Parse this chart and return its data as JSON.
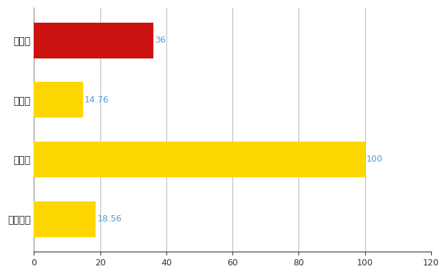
{
  "categories": [
    "大仙市",
    "県平均",
    "県最大",
    "全国平均"
  ],
  "values": [
    36,
    14.76,
    100,
    18.56
  ],
  "bar_colors": [
    "#CC1111",
    "#FFD700",
    "#FFD700",
    "#FFD700"
  ],
  "value_labels": [
    "36",
    "14.76",
    "100",
    "18.56"
  ],
  "label_color": "#5599CC",
  "xlim": [
    0,
    120
  ],
  "xticks": [
    0,
    20,
    40,
    60,
    80,
    100,
    120
  ],
  "grid_color": "#BBBBBB",
  "background_color": "#FFFFFF",
  "bar_height": 0.6,
  "figsize": [
    6.5,
    4.0
  ],
  "dpi": 100
}
